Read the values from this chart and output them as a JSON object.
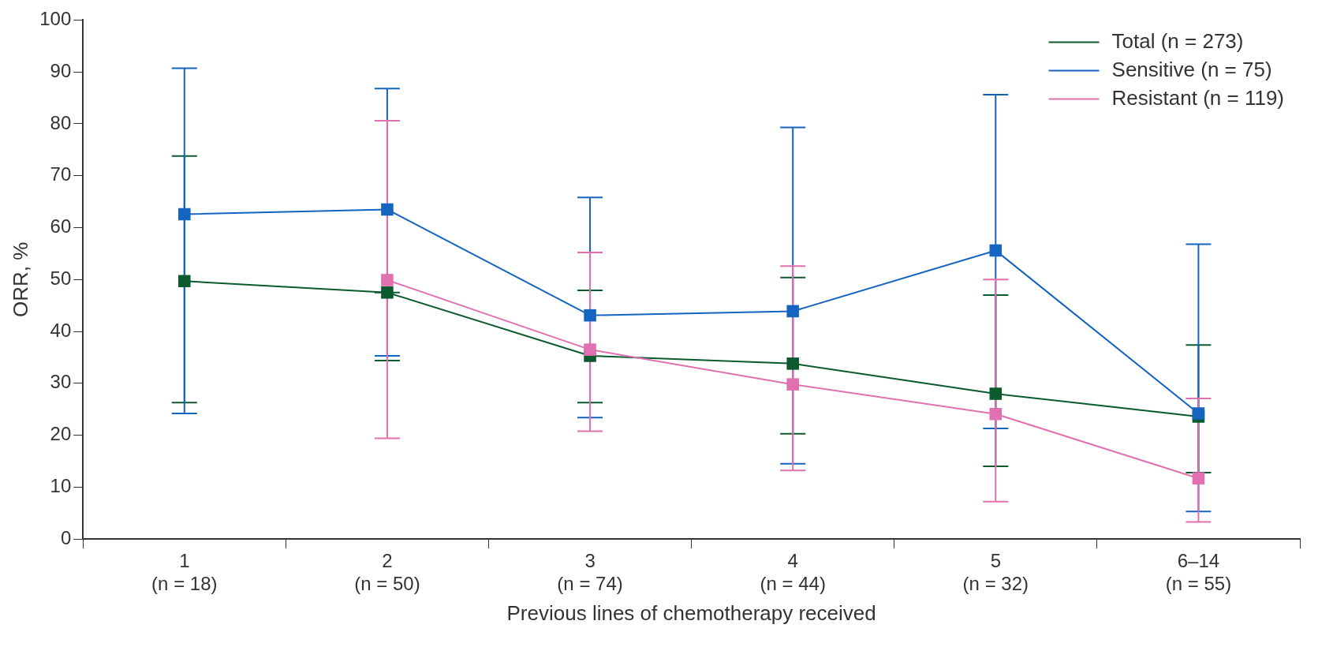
{
  "chart_data": {
    "type": "line",
    "xlabel": "Previous lines of chemotherapy received",
    "ylabel": "ORR, %",
    "categories": [
      "1\n(n = 18)",
      "2\n(n = 50)",
      "3\n(n = 74)",
      "4\n(n = 44)",
      "5\n(n = 32)",
      "6–14\n(n = 55)"
    ],
    "ylim": [
      0,
      100
    ],
    "yticks": [
      0,
      10,
      20,
      30,
      40,
      50,
      60,
      70,
      80,
      90,
      100
    ],
    "grid": false,
    "legend": "top right",
    "marker": "square",
    "line_style": "solid",
    "series": [
      {
        "name": "Total (n = 273)",
        "color": "#0b5a2e",
        "values": [
          49.7,
          47.5,
          35.3,
          33.8,
          28,
          23.6
        ],
        "errors": [
          [
            26.3,
            73.8
          ],
          [
            34.4,
            47.5
          ],
          [
            26.3,
            47.9
          ],
          [
            20.3,
            50.4
          ],
          [
            14,
            47
          ],
          [
            12.8,
            37.4
          ]
        ]
      },
      {
        "name": "Sensitive (n = 75)",
        "color": "#1565c0",
        "values": [
          62.6,
          63.5,
          43.1,
          43.9,
          55.6,
          24.2
        ],
        "errors": [
          [
            24.2,
            90.7
          ],
          [
            35.3,
            86.8
          ],
          [
            23.4,
            65.8
          ],
          [
            14.5,
            79.3
          ],
          [
            21.3,
            85.6
          ],
          [
            5.3,
            56.8
          ]
        ]
      },
      {
        "name": "Resistant (n = 119)",
        "color": "#e070b0",
        "values": [
          null,
          49.9,
          36.5,
          29.8,
          24.1,
          11.7
        ],
        "errors": [
          null,
          [
            19.4,
            80.6
          ],
          [
            20.8,
            55.2
          ],
          [
            13.2,
            52.6
          ],
          [
            7.2,
            50
          ],
          [
            3.3,
            27.1
          ]
        ]
      }
    ]
  }
}
